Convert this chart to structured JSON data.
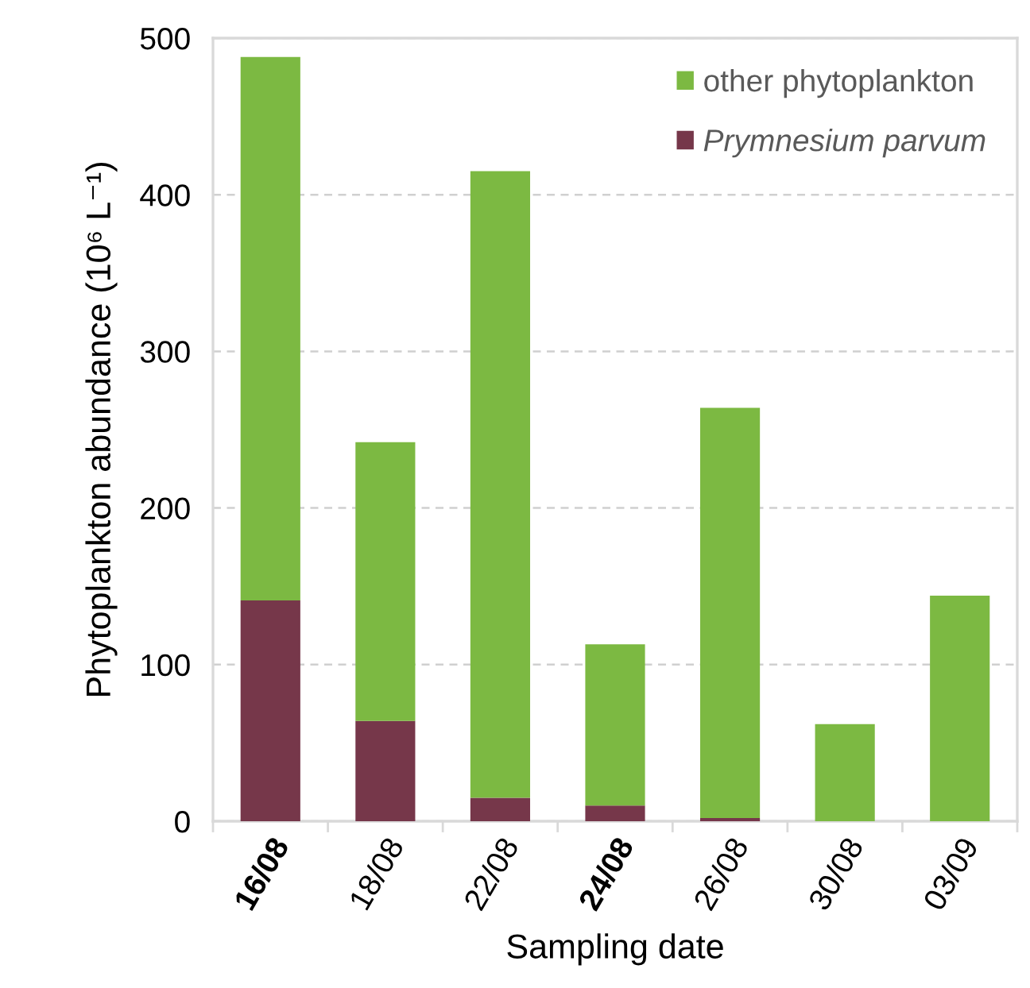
{
  "chart_data": {
    "type": "bar",
    "stacked": true,
    "xlabel": "Sampling date",
    "ylabel": "Phytoplankton abundance (10⁶ L⁻¹)",
    "categories": [
      "16/08",
      "18/08",
      "22/08",
      "24/08",
      "26/08",
      "30/08",
      "03/09"
    ],
    "series": [
      {
        "name": "Prymnesium parvum",
        "color": "#76374a",
        "values": [
          141,
          64,
          15,
          10,
          2,
          0,
          0
        ]
      },
      {
        "name": "other phytoplankton",
        "color": "#7cb942",
        "values": [
          347,
          178,
          400,
          103,
          262,
          62,
          144
        ]
      }
    ],
    "ylim": [
      0,
      500
    ],
    "yticks": [
      0,
      100,
      200,
      300,
      400,
      500
    ],
    "grid": "y",
    "legend": "top right"
  }
}
